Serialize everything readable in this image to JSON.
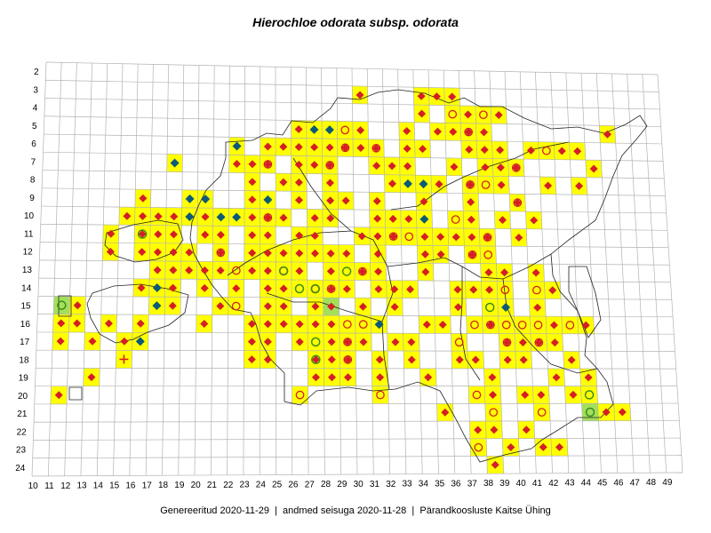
{
  "title": "Hierochloe odorata subsp. odorata",
  "footer": {
    "generated": "Genereeritud 2020-11-29",
    "data_state": "andmed seisuga 2020-11-28",
    "organization": "Pärandkoosluste Kaitse Ühing"
  },
  "colors": {
    "occupied_cell": "#ffff00",
    "highlight_cell": "#a3e05a",
    "grid_line": "#b3b3b3",
    "border_line": "#222222",
    "red_diamond": "#d41f26",
    "blue_diamond": "#0b5a78",
    "red_circle": "#d41f26",
    "green_circle": "#3c8a1e",
    "red_cross": "#d41f26"
  },
  "axes": {
    "columns": [
      "10",
      "11",
      "12",
      "13",
      "14",
      "15",
      "16",
      "17",
      "18",
      "19",
      "20",
      "21",
      "22",
      "23",
      "24",
      "25",
      "26",
      "27",
      "28",
      "29",
      "30",
      "31",
      "32",
      "33",
      "34",
      "35",
      "36",
      "37",
      "38",
      "39",
      "40",
      "41",
      "42",
      "43",
      "44",
      "45",
      "46",
      "47",
      "48",
      "49"
    ],
    "rows": [
      "2",
      "3",
      "4",
      "5",
      "6",
      "7",
      "8",
      "9",
      "10",
      "11",
      "12",
      "13",
      "14",
      "15",
      "16",
      "17",
      "18",
      "19",
      "20",
      "21",
      "22",
      "23",
      "24"
    ]
  },
  "symbols": {
    "red-diamond": [
      "30-3",
      "34-3",
      "35-3",
      "36-3",
      "34-4",
      "37-4",
      "39-4",
      "26-5",
      "27-5",
      "28-5",
      "30-5",
      "33-5",
      "35-5",
      "36-5",
      "37-5",
      "38-5",
      "46-5",
      "24-6",
      "25-6",
      "26-6",
      "27-6",
      "28-6",
      "29-6",
      "30-6",
      "31-6",
      "33-6",
      "34-6",
      "37-6",
      "38-6",
      "39-6",
      "41-6",
      "43-6",
      "44-6",
      "22-7",
      "23-7",
      "24-7",
      "26-7",
      "27-7",
      "28-7",
      "31-7",
      "32-7",
      "33-7",
      "36-7",
      "38-7",
      "39-7",
      "40-7",
      "45-7",
      "23-8",
      "25-8",
      "26-8",
      "28-8",
      "32-8",
      "35-8",
      "37-8",
      "39-8",
      "42-8",
      "44-8",
      "16-9",
      "23-9",
      "24-9",
      "26-9",
      "28-9",
      "29-9",
      "31-9",
      "34-9",
      "37-9",
      "40-9",
      "15-10",
      "16-10",
      "17-10",
      "18-10",
      "19-10",
      "20-10",
      "21-10",
      "23-10",
      "24-10",
      "25-10",
      "27-10",
      "28-10",
      "31-10",
      "32-10",
      "33-10",
      "37-10",
      "39-10",
      "41-10",
      "14-11",
      "16-11",
      "17-11",
      "18-11",
      "20-11",
      "21-11",
      "23-11",
      "24-11",
      "26-11",
      "27-11",
      "30-11",
      "31-11",
      "32-11",
      "34-11",
      "35-11",
      "36-11",
      "37-11",
      "38-11",
      "40-11",
      "14-12",
      "16-12",
      "17-12",
      "18-12",
      "19-12",
      "21-12",
      "23-12",
      "24-12",
      "25-12",
      "26-12",
      "27-12",
      "28-12",
      "29-12",
      "31-12",
      "34-12",
      "35-12",
      "37-12",
      "17-13",
      "18-13",
      "19-13",
      "20-13",
      "21-13",
      "23-13",
      "24-13",
      "26-13",
      "28-13",
      "30-13",
      "31-13",
      "34-13",
      "38-13",
      "39-13",
      "41-13",
      "16-14",
      "17-14",
      "18-14",
      "20-14",
      "22-14",
      "24-14",
      "25-14",
      "28-14",
      "29-14",
      "31-14",
      "32-14",
      "33-14",
      "36-14",
      "37-14",
      "38-14",
      "42-14",
      "12-15",
      "18-15",
      "21-15",
      "24-15",
      "25-15",
      "27-15",
      "28-15",
      "30-15",
      "32-15",
      "36-15",
      "39-15",
      "41-15",
      "11-16",
      "12-16",
      "14-16",
      "16-16",
      "20-16",
      "23-16",
      "24-16",
      "25-16",
      "26-16",
      "27-16",
      "28-16",
      "31-16",
      "34-16",
      "35-16",
      "38-16",
      "42-16",
      "44-16",
      "11-17",
      "13-17",
      "15-17",
      "23-17",
      "24-17",
      "26-17",
      "28-17",
      "29-17",
      "30-17",
      "32-17",
      "33-17",
      "39-17",
      "40-17",
      "41-17",
      "42-17",
      "23-18",
      "24-18",
      "27-18",
      "28-18",
      "29-18",
      "31-18",
      "33-18",
      "36-18",
      "37-18",
      "39-18",
      "40-18",
      "43-18",
      "13-19",
      "27-19",
      "28-19",
      "29-19",
      "31-19",
      "34-19",
      "38-19",
      "42-19",
      "44-19",
      "11-20",
      "38-20",
      "40-20",
      "41-20",
      "43-20",
      "35-21",
      "45-21",
      "46-21",
      "37-22",
      "38-22",
      "40-22",
      "39-23",
      "41-23",
      "42-23",
      "38-24"
    ],
    "blue-diamond": [
      "27-5",
      "28-5",
      "22-6",
      "18-7",
      "33-8",
      "34-8",
      "19-9",
      "20-9",
      "24-9",
      "19-10",
      "21-10",
      "22-10",
      "34-10",
      "17-14",
      "17-15",
      "39-15",
      "31-16",
      "16-17"
    ],
    "red-circle": [
      "36-4",
      "38-4",
      "29-5",
      "37-5",
      "42-6",
      "29-6",
      "31-6",
      "24-7",
      "40-7",
      "28-7",
      "37-8",
      "38-8",
      "24-10",
      "36-10",
      "40-9",
      "32-11",
      "33-11",
      "38-11",
      "38-12",
      "37-12",
      "21-12",
      "22-13",
      "25-13",
      "30-13",
      "27-14",
      "28-14",
      "39-14",
      "41-14",
      "22-15",
      "37-16",
      "30-16",
      "38-16",
      "39-16",
      "40-16",
      "41-16",
      "39-17",
      "41-17",
      "43-16",
      "36-17",
      "29-16",
      "29-17",
      "29-18",
      "31-20",
      "37-20",
      "41-21",
      "38-21",
      "37-23",
      "26-20"
    ],
    "green-circle": [
      "16-11",
      "25-13",
      "29-13",
      "27-14",
      "26-14",
      "11-15",
      "27-17",
      "27-18",
      "38-15",
      "44-21",
      "44-20"
    ],
    "red-cross": [
      "15-18"
    ]
  },
  "highlight_cells": [
    "11-15",
    "28-15",
    "44-21"
  ]
}
